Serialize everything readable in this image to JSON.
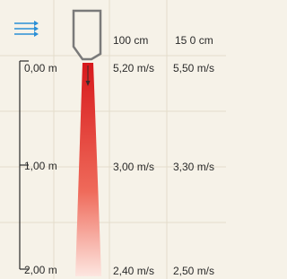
{
  "columns": [
    "100 cm",
    "15 0 cm"
  ],
  "rows": [
    {
      "distance": "0,00 m",
      "speeds": [
        "5,20 m/s",
        "5,50 m/s"
      ]
    },
    {
      "distance": "1,00 m",
      "speeds": [
        "3,00 m/s",
        "3,30 m/s"
      ]
    },
    {
      "distance": "2,00 m",
      "speeds": [
        "2,40 m/s",
        "2,50 m/s"
      ]
    }
  ]
}
